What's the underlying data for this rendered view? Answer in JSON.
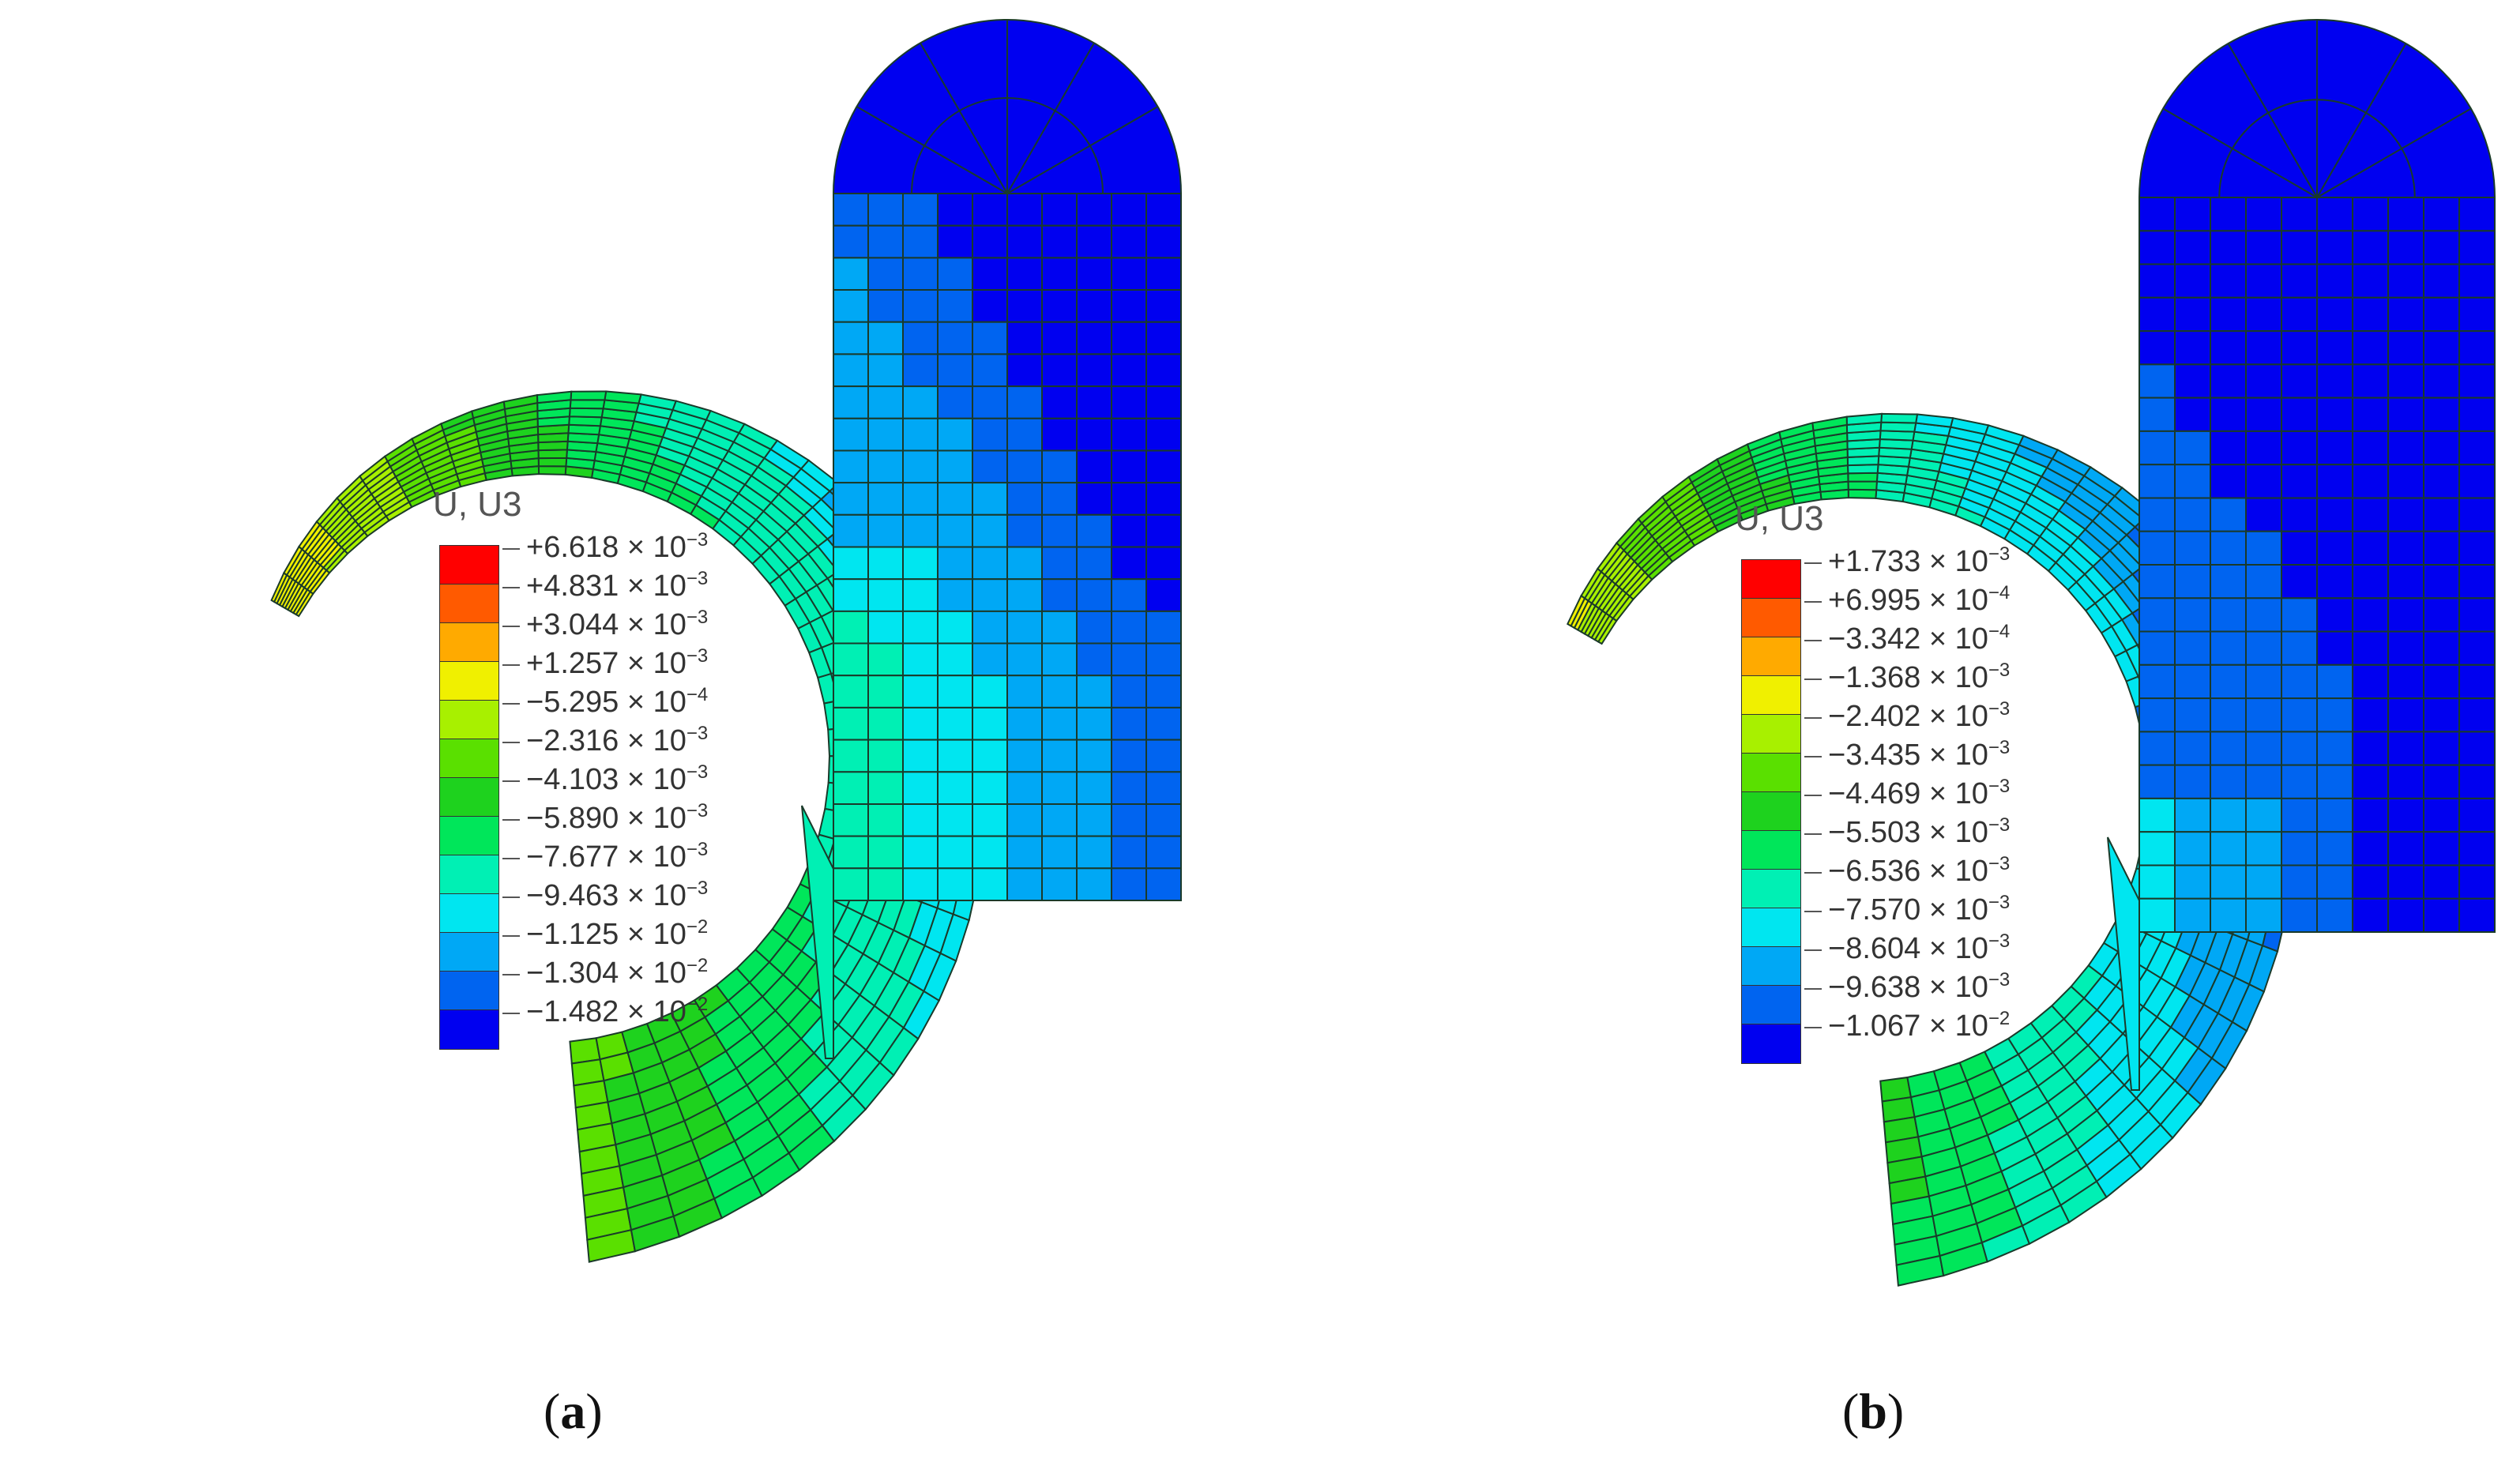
{
  "panels": [
    {
      "id": "a",
      "caption_letter": "a",
      "legend_title": "U, U3",
      "legend": [
        {
          "mantissa": "+6.618",
          "exponent": "−3",
          "color": "#ff0000"
        },
        {
          "mantissa": "+4.831",
          "exponent": "−3",
          "color": "#ff5a00"
        },
        {
          "mantissa": "+3.044",
          "exponent": "−3",
          "color": "#ffaa00"
        },
        {
          "mantissa": "+1.257",
          "exponent": "−3",
          "color": "#f0f000"
        },
        {
          "mantissa": "−5.295",
          "exponent": "−4",
          "color": "#a8f000"
        },
        {
          "mantissa": "−2.316",
          "exponent": "−3",
          "color": "#5ae000"
        },
        {
          "mantissa": "−4.103",
          "exponent": "−3",
          "color": "#1ed21e"
        },
        {
          "mantissa": "−5.890",
          "exponent": "−3",
          "color": "#00e65a"
        },
        {
          "mantissa": "−7.677",
          "exponent": "−3",
          "color": "#00f0b4"
        },
        {
          "mantissa": "−9.463",
          "exponent": "−3",
          "color": "#00e6f0"
        },
        {
          "mantissa": "−1.125",
          "exponent": "−2",
          "color": "#00a8f5"
        },
        {
          "mantissa": "−1.304",
          "exponent": "−2",
          "color": "#0064f0"
        },
        {
          "mantissa": "−1.482",
          "exponent": "−2",
          "color": "#0000f0"
        }
      ]
    },
    {
      "id": "b",
      "caption_letter": "b",
      "legend_title": "U, U3",
      "legend": [
        {
          "mantissa": "+1.733",
          "exponent": "−3",
          "color": "#ff0000"
        },
        {
          "mantissa": "+6.995",
          "exponent": "−4",
          "color": "#ff5a00"
        },
        {
          "mantissa": "−3.342",
          "exponent": "−4",
          "color": "#ffaa00"
        },
        {
          "mantissa": "−1.368",
          "exponent": "−3",
          "color": "#f0f000"
        },
        {
          "mantissa": "−2.402",
          "exponent": "−3",
          "color": "#a8f000"
        },
        {
          "mantissa": "−3.435",
          "exponent": "−3",
          "color": "#5ae000"
        },
        {
          "mantissa": "−4.469",
          "exponent": "−3",
          "color": "#1ed21e"
        },
        {
          "mantissa": "−5.503",
          "exponent": "−3",
          "color": "#00e65a"
        },
        {
          "mantissa": "−6.536",
          "exponent": "−3",
          "color": "#00f0b4"
        },
        {
          "mantissa": "−7.570",
          "exponent": "−3",
          "color": "#00e6f0"
        },
        {
          "mantissa": "−8.604",
          "exponent": "−3",
          "color": "#00a8f5"
        },
        {
          "mantissa": "−9.638",
          "exponent": "−3",
          "color": "#0064f0"
        },
        {
          "mantissa": "−1.067",
          "exponent": "−2",
          "color": "#0000f0"
        }
      ]
    }
  ],
  "multiply_sign": "× 10",
  "mesh_line_color": "#1a3a2a"
}
